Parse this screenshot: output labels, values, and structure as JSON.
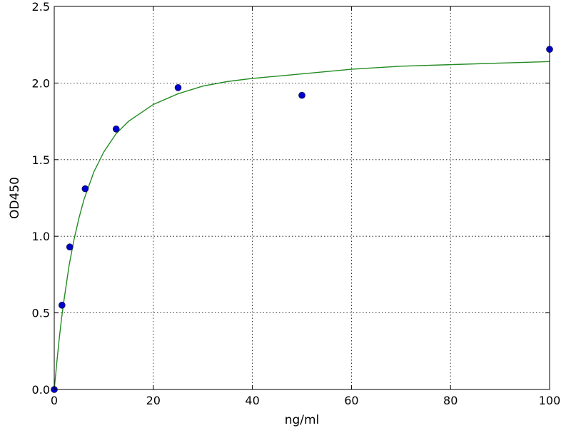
{
  "chart_data": {
    "type": "scatter",
    "title": "",
    "xlabel": "ng/ml",
    "ylabel": "OD450",
    "xlim": [
      0,
      100
    ],
    "ylim": [
      0,
      2.5
    ],
    "x_ticks": [
      0,
      20,
      40,
      60,
      80,
      100
    ],
    "y_ticks": [
      0.0,
      0.5,
      1.0,
      1.5,
      2.0,
      2.5
    ],
    "x_tick_labels": [
      "0",
      "20",
      "40",
      "60",
      "80",
      "100"
    ],
    "y_tick_labels": [
      "0.0",
      "0.5",
      "1.0",
      "1.5",
      "2.0",
      "2.5"
    ],
    "grid": true,
    "legend": "none",
    "series": [
      {
        "type": "scatter",
        "color": "#0000cc",
        "x": [
          0,
          1.56,
          3.13,
          6.25,
          12.5,
          25,
          50,
          100
        ],
        "y": [
          0.0,
          0.55,
          0.93,
          1.31,
          1.7,
          1.97,
          1.92,
          2.22
        ]
      },
      {
        "type": "line",
        "color": "#228b22",
        "x": [
          0,
          0.5,
          1,
          1.5,
          2,
          3,
          4,
          5,
          6,
          8,
          10,
          12.5,
          15,
          20,
          25,
          30,
          35,
          40,
          50,
          60,
          70,
          80,
          90,
          100
        ],
        "y": [
          0.0,
          0.17,
          0.33,
          0.47,
          0.59,
          0.81,
          0.98,
          1.12,
          1.24,
          1.42,
          1.55,
          1.67,
          1.75,
          1.86,
          1.93,
          1.98,
          2.01,
          2.03,
          2.06,
          2.09,
          2.11,
          2.12,
          2.13,
          2.14
        ]
      }
    ]
  }
}
